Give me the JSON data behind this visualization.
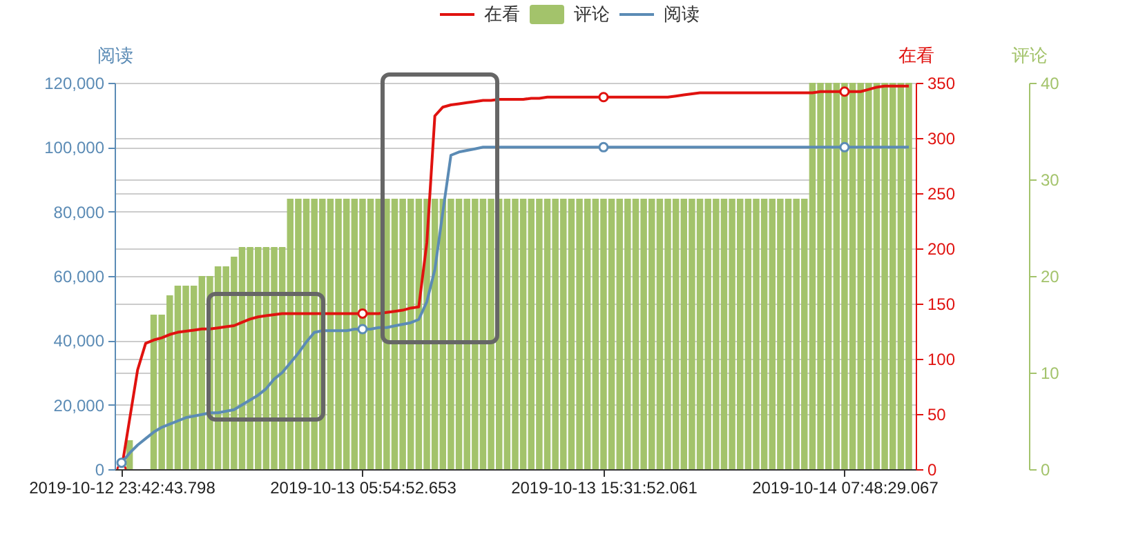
{
  "chart_data": {
    "type": "line",
    "legend": "top",
    "grid": "y",
    "categories": [
      "2019-10-12 23:42:43.798",
      null,
      null,
      null,
      null,
      null,
      null,
      null,
      null,
      null,
      null,
      null,
      null,
      null,
      null,
      null,
      null,
      null,
      null,
      null,
      null,
      null,
      null,
      null,
      null,
      null,
      null,
      null,
      null,
      null,
      "2019-10-13 05:54:52.653",
      null,
      null,
      null,
      null,
      null,
      null,
      null,
      null,
      null,
      null,
      null,
      null,
      null,
      null,
      null,
      null,
      null,
      null,
      null,
      null,
      null,
      null,
      null,
      null,
      null,
      null,
      null,
      null,
      null,
      "2019-10-13 15:31:52.061",
      null,
      null,
      null,
      null,
      null,
      null,
      null,
      null,
      null,
      null,
      null,
      null,
      null,
      null,
      null,
      null,
      null,
      null,
      null,
      null,
      null,
      null,
      null,
      null,
      null,
      null,
      null,
      null,
      null,
      "2019-10-14 07:48:29.067",
      null,
      null,
      null,
      null,
      null,
      null,
      null,
      null
    ],
    "ylabel": "阅读",
    "ylim": [
      0,
      120000
    ],
    "yticks": [
      0,
      {
        "value": 20000,
        "label": "20,000"
      },
      {
        "value": 40000,
        "label": "40,000"
      },
      {
        "value": 60000,
        "label": "60,000"
      },
      {
        "value": 80000,
        "label": "80,000"
      },
      {
        "value": 100000,
        "label": "100,000"
      },
      {
        "value": 120000,
        "label": "120,000"
      }
    ],
    "y2label": "在看",
    "y2lim": [
      0,
      350
    ],
    "y2ticks": [
      0,
      50,
      100,
      150,
      200,
      250,
      300,
      350
    ],
    "y3label": "评论",
    "y3lim": [
      0,
      40
    ],
    "y3ticks": [
      0,
      10,
      20,
      30,
      40
    ],
    "series": [
      {
        "name": "在看",
        "axis": "y2",
        "color": "#e0120f",
        "values": [
          0,
          45,
          90,
          114,
          117,
          119,
          122,
          124,
          125,
          126,
          127,
          127,
          128,
          129,
          130,
          133,
          136,
          138,
          139,
          140,
          141,
          141,
          141,
          141,
          141,
          141,
          141,
          141,
          141,
          141,
          141,
          141,
          141,
          142,
          143,
          144,
          146,
          147,
          205,
          320,
          328,
          330,
          331,
          332,
          333,
          334,
          334,
          335,
          335,
          335,
          335,
          336,
          336,
          337,
          337,
          337,
          337,
          337,
          337,
          337,
          337,
          337,
          337,
          337,
          337,
          337,
          337,
          337,
          337,
          338,
          339,
          340,
          341,
          341,
          341,
          341,
          341,
          341,
          341,
          341,
          341,
          341,
          341,
          341,
          341,
          341,
          341,
          342,
          342,
          342,
          342,
          342,
          342,
          344,
          346,
          347,
          347,
          347,
          347
        ]
      },
      {
        "name": "评论",
        "type": "bar",
        "axis": "y3",
        "color": "#a3c36b",
        "values": [
          null,
          3,
          null,
          null,
          16,
          16,
          18,
          19,
          19,
          19,
          20,
          20,
          21,
          21,
          22,
          23,
          23,
          23,
          23,
          23,
          23,
          28,
          28,
          28,
          28,
          28,
          28,
          28,
          28,
          28,
          28,
          28,
          28,
          28,
          28,
          28,
          28,
          28,
          28,
          28,
          28,
          28,
          28,
          28,
          28,
          28,
          28,
          28,
          28,
          28,
          28,
          28,
          28,
          28,
          28,
          28,
          28,
          28,
          28,
          28,
          28,
          28,
          28,
          28,
          28,
          28,
          28,
          28,
          28,
          28,
          28,
          28,
          28,
          28,
          28,
          28,
          28,
          28,
          28,
          28,
          28,
          28,
          28,
          28,
          28,
          28,
          40,
          40,
          40,
          40,
          40,
          40,
          40,
          40,
          40,
          40,
          40,
          40,
          40
        ]
      },
      {
        "name": "阅读",
        "axis": "y",
        "color": "#5b8bb5",
        "values": [
          2000,
          5000,
          7500,
          9500,
          11500,
          13000,
          14000,
          15000,
          16000,
          16500,
          17000,
          17500,
          17500,
          18000,
          18500,
          20000,
          21500,
          23000,
          25000,
          28000,
          30000,
          33000,
          36000,
          39500,
          42500,
          43000,
          43000,
          43000,
          43000,
          43500,
          43500,
          43500,
          44000,
          44000,
          44500,
          45000,
          45500,
          46500,
          52000,
          62000,
          80000,
          97500,
          98500,
          99000,
          99500,
          100000,
          100000,
          100000,
          100000,
          100000,
          100000,
          100000,
          100000,
          100000,
          100000,
          100000,
          100000,
          100000,
          100000,
          100000,
          100000,
          100000,
          100000,
          100000,
          100000,
          100000,
          100000,
          100000,
          100000,
          100000,
          100000,
          100000,
          100000,
          100000,
          100000,
          100000,
          100000,
          100000,
          100000,
          100000,
          100000,
          100000,
          100000,
          100000,
          100000,
          100000,
          100000,
          100000,
          100000,
          100000,
          100000,
          100000,
          100000,
          100000,
          100000,
          100000,
          100000,
          100000,
          100000
        ]
      },
      {
        "type": "scatter",
        "marker": "circle",
        "axis": "y2",
        "color": "#e0120f",
        "values": [
          0,
          null,
          null,
          null,
          null,
          null,
          null,
          null,
          null,
          null,
          null,
          null,
          null,
          null,
          null,
          null,
          null,
          null,
          null,
          null,
          null,
          null,
          null,
          null,
          null,
          null,
          null,
          null,
          null,
          null,
          141,
          null,
          null,
          null,
          null,
          null,
          null,
          null,
          null,
          null,
          null,
          null,
          null,
          null,
          null,
          null,
          null,
          null,
          null,
          null,
          null,
          null,
          null,
          null,
          null,
          null,
          null,
          null,
          null,
          null,
          337,
          null,
          null,
          null,
          null,
          null,
          null,
          null,
          null,
          null,
          null,
          null,
          null,
          null,
          null,
          null,
          null,
          null,
          null,
          null,
          null,
          null,
          null,
          null,
          null,
          null,
          null,
          null,
          null,
          null,
          342,
          null,
          null,
          null,
          null,
          null,
          null,
          null,
          null
        ]
      },
      {
        "type": "scatter",
        "marker": "circle",
        "axis": "y",
        "color": "#5b8bb5",
        "values": [
          2000,
          null,
          null,
          null,
          null,
          null,
          null,
          null,
          null,
          null,
          null,
          null,
          null,
          null,
          null,
          null,
          null,
          null,
          null,
          null,
          null,
          null,
          null,
          null,
          null,
          null,
          null,
          null,
          null,
          null,
          43500,
          null,
          null,
          null,
          null,
          null,
          null,
          null,
          null,
          null,
          null,
          null,
          null,
          null,
          null,
          null,
          null,
          null,
          null,
          null,
          null,
          null,
          null,
          null,
          null,
          null,
          null,
          null,
          null,
          null,
          100000,
          null,
          null,
          null,
          null,
          null,
          null,
          null,
          null,
          null,
          null,
          null,
          null,
          null,
          null,
          null,
          null,
          null,
          null,
          null,
          null,
          null,
          null,
          null,
          null,
          null,
          null,
          null,
          null,
          null,
          100000,
          null,
          null,
          null,
          null,
          null,
          null,
          null,
          null
        ]
      }
    ]
  }
}
